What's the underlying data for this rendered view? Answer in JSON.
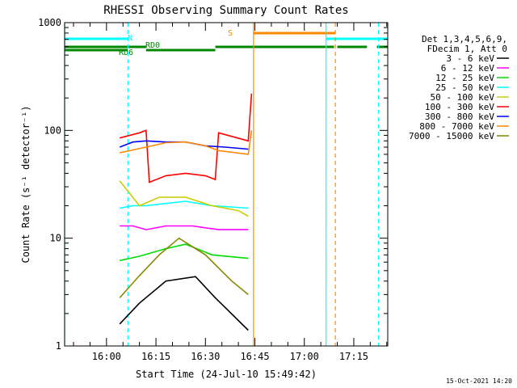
{
  "chart_data": {
    "type": "line",
    "title": "RHESSI Observing Summary Count Rates",
    "xlabel": "Start Time (24-Jul-10 15:49:42)",
    "ylabel": "Count Rate (s⁻¹ detector⁻¹)",
    "yscale": "log",
    "ylim": [
      1,
      1000
    ],
    "xlim_minutes": [
      -12.7,
      85.3
    ],
    "x_ticks": [
      {
        "minutes": 0,
        "label": "16:00"
      },
      {
        "minutes": 15,
        "label": "16:15"
      },
      {
        "minutes": 30,
        "label": "16:30"
      },
      {
        "minutes": 45,
        "label": "16:45"
      },
      {
        "minutes": 60,
        "label": "17:00"
      },
      {
        "minutes": 75,
        "label": "17:15"
      }
    ],
    "y_ticks": [
      {
        "value": 1,
        "label": "1"
      },
      {
        "value": 10,
        "label": "10"
      },
      {
        "value": 100,
        "label": "100"
      },
      {
        "value": 1000,
        "label": "1000"
      }
    ],
    "legend_header": [
      "Det 1,3,4,5,6,9,",
      "FDecim 1, Att 0"
    ],
    "legend_position": "right",
    "series": [
      {
        "name": "3 - 6 keV",
        "color": "#000000",
        "segments": [
          [
            [
              4,
              1.6
            ],
            [
              10,
              2.5
            ],
            [
              18,
              4
            ],
            [
              27,
              4.4
            ],
            [
              33,
              2.8
            ],
            [
              43,
              1.4
            ]
          ]
        ]
      },
      {
        "name": "6 - 12 keV",
        "color": "#ff00ff",
        "segments": [
          [
            [
              4,
              13
            ],
            [
              8,
              13
            ],
            [
              12,
              12
            ],
            [
              18,
              13
            ],
            [
              26,
              13
            ],
            [
              34,
              12
            ],
            [
              43,
              12
            ]
          ]
        ]
      },
      {
        "name": "12 - 25 keV",
        "color": "#00dd00",
        "segments": [
          [
            [
              4,
              6.2
            ],
            [
              10,
              6.8
            ],
            [
              18,
              8
            ],
            [
              24,
              8.8
            ],
            [
              32,
              7
            ],
            [
              43,
              6.5
            ]
          ]
        ]
      },
      {
        "name": "25 - 50 keV",
        "color": "#00ffff",
        "segments": [
          [
            [
              4,
              19
            ],
            [
              8,
              20
            ],
            [
              12,
              20
            ],
            [
              18,
              21
            ],
            [
              24,
              22
            ],
            [
              32,
              20
            ],
            [
              43,
              19
            ]
          ]
        ]
      },
      {
        "name": "50 - 100 keV",
        "color": "#cccc00",
        "segments": [
          [
            [
              4,
              34
            ],
            [
              10,
              20
            ],
            [
              16,
              24
            ],
            [
              24,
              24
            ],
            [
              32,
              20
            ],
            [
              40,
              18
            ],
            [
              43,
              16
            ]
          ]
        ]
      },
      {
        "name": "100 - 300 keV",
        "color": "#ff0000",
        "segments": [
          [
            [
              4,
              85
            ],
            [
              10,
              95
            ],
            [
              12,
              100
            ],
            [
              13,
              33
            ],
            [
              18,
              38
            ],
            [
              24,
              40
            ],
            [
              30,
              38
            ],
            [
              33,
              35
            ],
            [
              34,
              95
            ],
            [
              43,
              80
            ],
            [
              44,
              220
            ]
          ]
        ]
      },
      {
        "name": "300 - 800 keV",
        "color": "#0000ff",
        "segments": [
          [
            [
              4,
              70
            ],
            [
              8,
              78
            ],
            [
              12,
              80
            ],
            [
              18,
              78
            ],
            [
              24,
              78
            ],
            [
              30,
              72
            ],
            [
              36,
              70
            ],
            [
              43,
              67
            ]
          ]
        ]
      },
      {
        "name": "800 - 7000 keV",
        "color": "#ff8800",
        "segments": [
          [
            [
              4,
              62
            ],
            [
              12,
              70
            ],
            [
              18,
              77
            ],
            [
              24,
              78
            ],
            [
              30,
              72
            ],
            [
              34,
              65
            ],
            [
              43,
              60
            ],
            [
              44,
              100
            ]
          ]
        ]
      },
      {
        "name": "7000 - 15000 keV",
        "color": "#888800",
        "segments": [
          [
            [
              4,
              2.8
            ],
            [
              10,
              4.5
            ],
            [
              16,
              7
            ],
            [
              22,
              10
            ],
            [
              30,
              7
            ],
            [
              38,
              4
            ],
            [
              43,
              3
            ]
          ]
        ]
      }
    ],
    "vertical_lines": [
      {
        "minutes": -12.7,
        "color": "#00ffff",
        "style": "solid"
      },
      {
        "minutes": 6.5,
        "color": "#00ffff",
        "style": "dashed"
      },
      {
        "minutes": 44.6,
        "color": "#ff8800",
        "style": "solid"
      },
      {
        "minutes": 66.6,
        "color": "#00ffff",
        "style": "solid"
      },
      {
        "minutes": 69.4,
        "color": "#ff8800",
        "style": "dashed"
      },
      {
        "minutes": 82.5,
        "color": "#00ffff",
        "style": "dashed"
      }
    ],
    "flags": [
      {
        "label": "N",
        "color": "#00ffff",
        "segments": [
          [
            -12.7,
            6.5
          ],
          [
            66.6,
            85.3
          ]
        ]
      },
      {
        "label": "S",
        "color": "#ff8800",
        "segments": [
          [
            44.6,
            69.4
          ]
        ]
      },
      {
        "label": "RD0",
        "color": "#008800",
        "segments": [
          [
            -12.7,
            12
          ],
          [
            33,
            69
          ],
          [
            70,
            79
          ],
          [
            82,
            85.3
          ]
        ]
      },
      {
        "label": "RD6",
        "color": "#008800",
        "segments": [
          [
            -12.7,
            6.5
          ],
          [
            12,
            33
          ]
        ]
      }
    ]
  },
  "footer": {
    "timestamp": "15-Oct-2021 14:20"
  }
}
